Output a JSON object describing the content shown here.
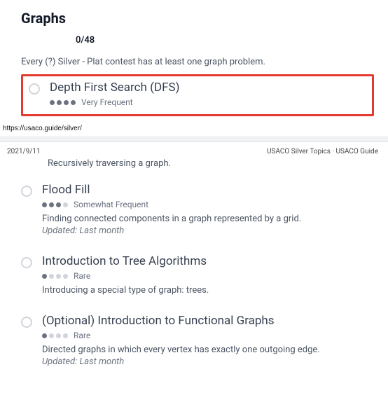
{
  "header": {
    "title": "Graphs",
    "progress": "0/48",
    "intro": "Every (?) Silver - Plat contest has at least one graph problem."
  },
  "urlLine": "https://usaco.guide/silver/",
  "meta": {
    "date": "2021/9/11",
    "crumbs": "USACO Silver Topics · USACO Guide"
  },
  "dfs": {
    "title": "Depth First Search (DFS)",
    "freq": "Very Frequent",
    "desc": "Recursively traversing a graph."
  },
  "topics": [
    {
      "title": "Flood Fill",
      "freq": "Somewhat Frequent",
      "dots": 3,
      "desc": "Finding connected components in a graph represented by a grid.",
      "updated": "Updated: Last month"
    },
    {
      "title": "Introduction to Tree Algorithms",
      "freq": "Rare",
      "dots": 1,
      "desc": "Introducing a special type of graph: trees.",
      "updated": ""
    },
    {
      "title": "(Optional) Introduction to Functional Graphs",
      "freq": "Rare",
      "dots": 1,
      "desc": "Directed graphs in which every vertex has exactly one outgoing edge.",
      "updated": "Updated: Last month"
    }
  ]
}
